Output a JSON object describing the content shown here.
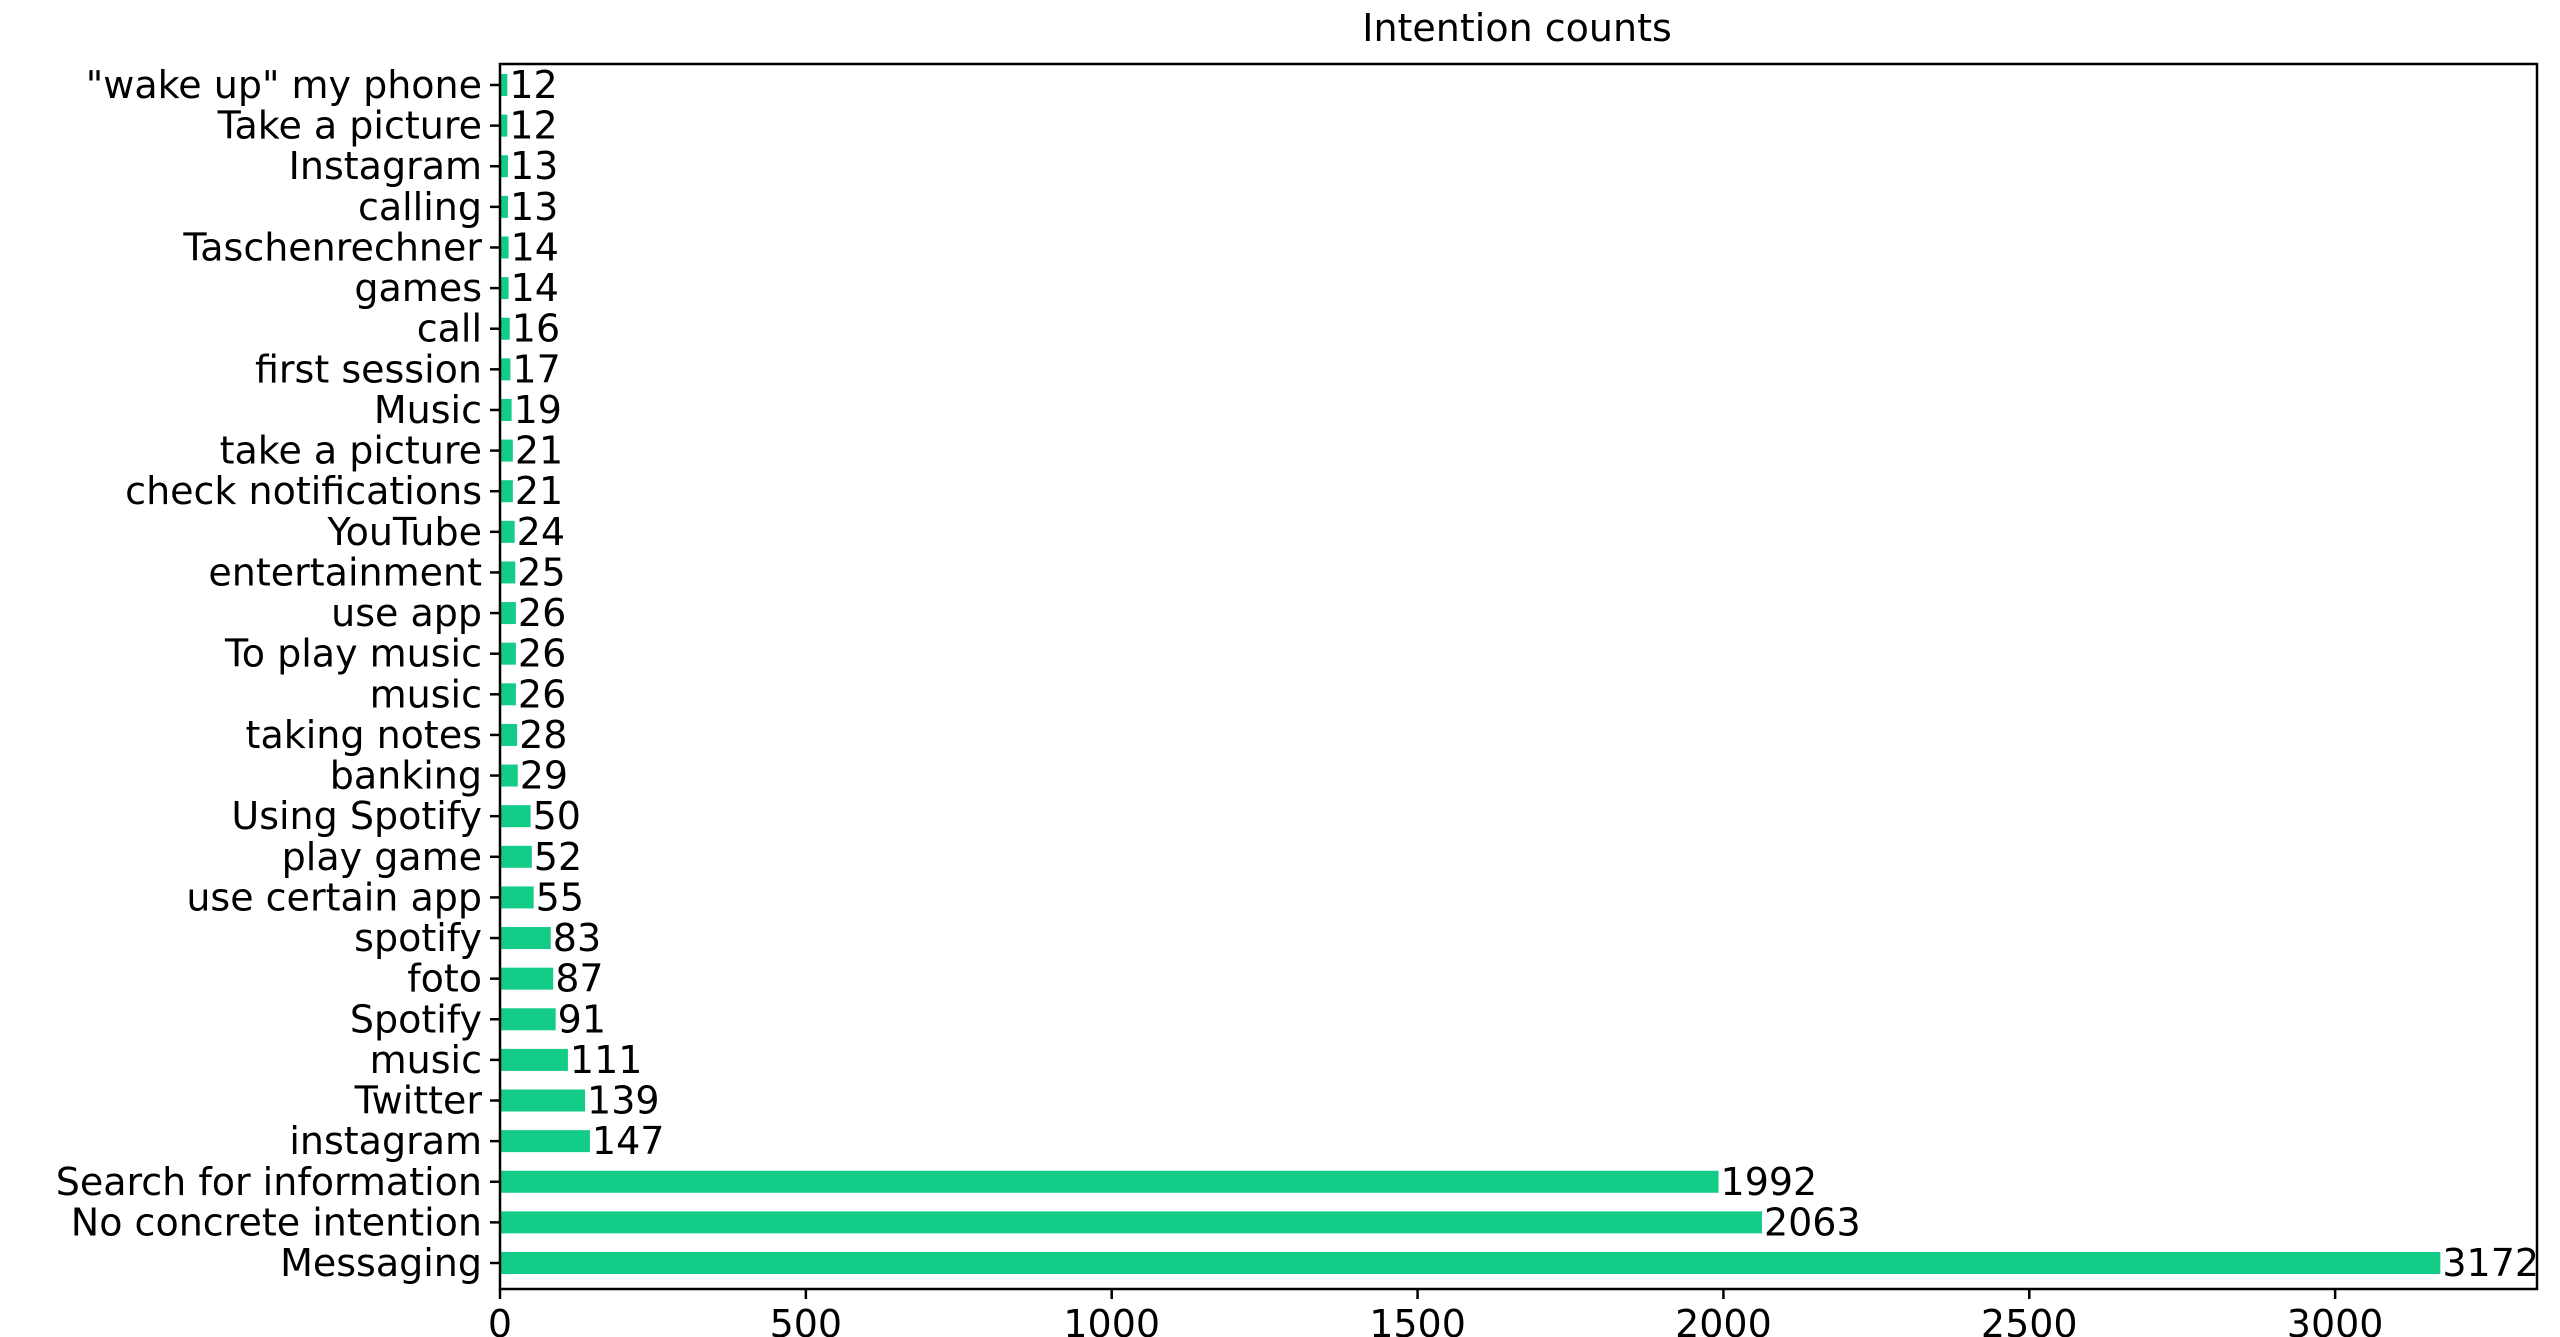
{
  "chart_data": {
    "type": "bar",
    "orientation": "horizontal",
    "title": "Intention counts",
    "xlabel": "",
    "ylabel": "",
    "xlim": [
      0,
      3330
    ],
    "xticks": [
      0,
      500,
      1000,
      1500,
      2000,
      2500,
      3000
    ],
    "grid": false,
    "bar_color": "#12cc88",
    "categories": [
      "Messaging",
      "No concrete intention",
      "Search for information",
      "instagram",
      "Twitter",
      "music",
      "Spotify",
      "foto",
      "spotify",
      "use certain app",
      "play game",
      "Using Spotify",
      "banking",
      "taking notes",
      "music ",
      "To play music ",
      "use app",
      "entertainment",
      "YouTube",
      "check notifications",
      "take a picture",
      "Music",
      "first session",
      "call",
      "games",
      "Taschenrechner",
      "calling ",
      "Instagram",
      "Take a picture ",
      "\"wake up\" my phone"
    ],
    "values": [
      3172,
      2063,
      1992,
      147,
      139,
      111,
      91,
      87,
      83,
      55,
      52,
      50,
      29,
      28,
      26,
      26,
      26,
      25,
      24,
      21,
      21,
      19,
      17,
      16,
      14,
      14,
      13,
      13,
      12,
      12
    ]
  }
}
